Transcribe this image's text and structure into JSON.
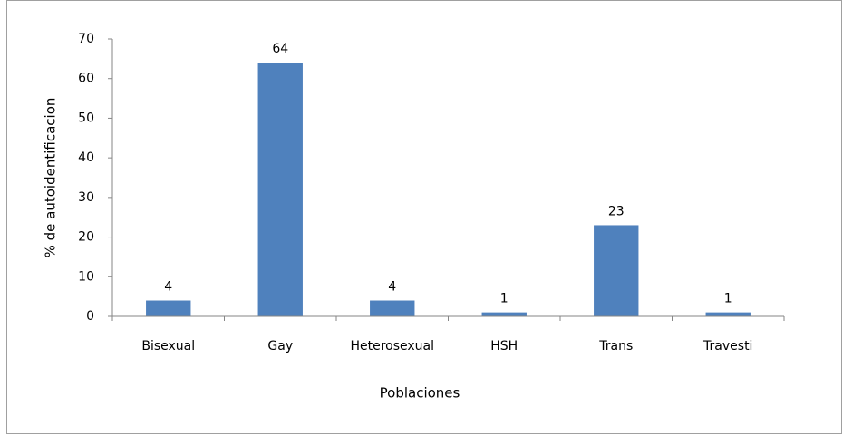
{
  "chart_data": {
    "type": "bar",
    "xlabel": "Poblaciones",
    "ylabel": "% de autoidentificacion",
    "categories": [
      "Bisexual",
      "Gay",
      "Heterosexual",
      "HSH",
      "Trans",
      "Travesti"
    ],
    "values": [
      4,
      64,
      4,
      1,
      23,
      1
    ],
    "color": "#4f81bd",
    "ylim": [
      0,
      70
    ],
    "yticks": [
      0,
      10,
      20,
      30,
      40,
      50,
      60,
      70
    ],
    "grid": false
  }
}
